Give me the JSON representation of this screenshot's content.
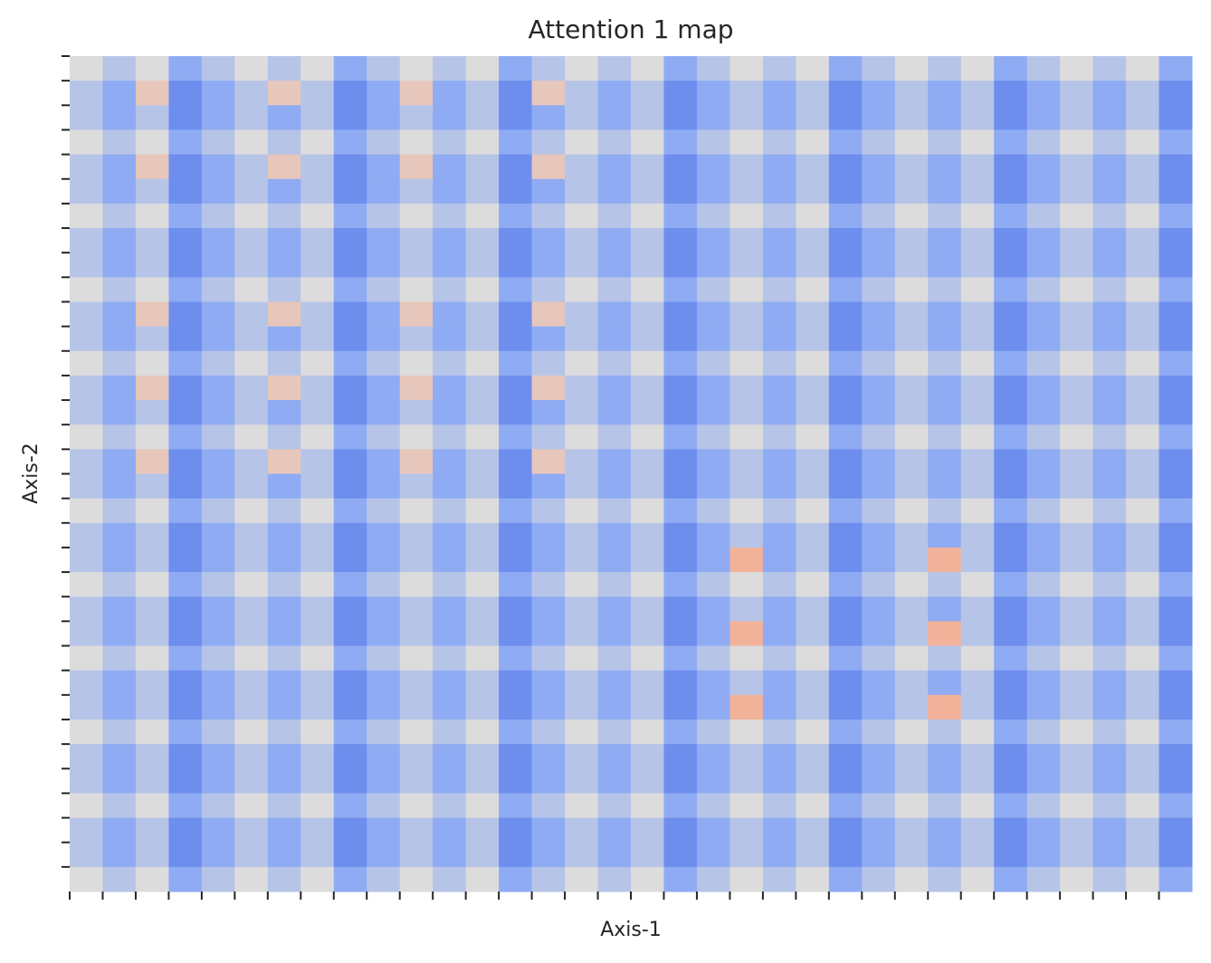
{
  "chart_data": {
    "type": "heatmap",
    "title": "Attention 1 map",
    "x_label": "Axis-1",
    "y_label": "Axis-2",
    "colormap": "coolwarm",
    "clim": [
      0,
      1
    ],
    "x_categories": [
      null,
      null,
      null,
      null,
      null,
      null,
      null,
      null,
      null,
      null,
      null,
      null,
      null,
      null,
      null,
      null,
      null,
      null,
      null,
      null,
      null,
      null,
      null,
      null,
      null,
      null,
      null,
      null,
      null,
      null,
      null,
      null,
      null,
      null
    ],
    "y_categories": [
      null,
      null,
      null,
      null,
      null,
      null,
      null,
      null,
      null,
      null,
      null,
      null,
      null,
      null,
      null,
      null,
      null,
      null,
      null,
      null,
      null,
      null,
      null,
      null,
      null,
      null,
      null,
      null,
      null,
      null,
      null,
      null,
      null,
      null
    ],
    "values": [
      [
        0.5,
        0.4,
        0.5,
        0.3,
        0.4,
        0.5,
        0.4,
        0.5,
        0.3,
        0.4,
        0.5,
        0.4,
        0.5,
        0.3,
        0.4,
        0.5,
        0.4,
        0.5,
        0.3,
        0.4,
        0.5,
        0.4,
        0.5,
        0.3,
        0.4,
        0.5,
        0.4,
        0.5,
        0.3,
        0.4,
        0.5,
        0.4,
        0.5,
        0.3
      ],
      [
        0.4,
        0.3,
        0.6,
        0.2,
        0.3,
        0.4,
        0.6,
        0.4,
        0.2,
        0.3,
        0.6,
        0.3,
        0.4,
        0.2,
        0.6,
        0.4,
        0.3,
        0.4,
        0.2,
        0.3,
        0.4,
        0.3,
        0.4,
        0.2,
        0.3,
        0.4,
        0.3,
        0.4,
        0.2,
        0.3,
        0.4,
        0.3,
        0.4,
        0.2
      ],
      [
        0.4,
        0.3,
        0.4,
        0.2,
        0.3,
        0.4,
        0.3,
        0.4,
        0.2,
        0.3,
        0.4,
        0.3,
        0.4,
        0.2,
        0.3,
        0.4,
        0.3,
        0.4,
        0.2,
        0.3,
        0.4,
        0.3,
        0.4,
        0.2,
        0.3,
        0.4,
        0.3,
        0.4,
        0.2,
        0.3,
        0.4,
        0.3,
        0.4,
        0.2
      ],
      [
        0.5,
        0.4,
        0.5,
        0.3,
        0.4,
        0.5,
        0.4,
        0.5,
        0.3,
        0.4,
        0.5,
        0.4,
        0.5,
        0.3,
        0.4,
        0.5,
        0.4,
        0.5,
        0.3,
        0.4,
        0.5,
        0.4,
        0.5,
        0.3,
        0.4,
        0.5,
        0.4,
        0.5,
        0.3,
        0.4,
        0.5,
        0.4,
        0.5,
        0.3
      ],
      [
        0.4,
        0.3,
        0.6,
        0.2,
        0.3,
        0.4,
        0.6,
        0.4,
        0.2,
        0.3,
        0.6,
        0.3,
        0.4,
        0.2,
        0.6,
        0.4,
        0.3,
        0.4,
        0.2,
        0.3,
        0.4,
        0.3,
        0.4,
        0.2,
        0.3,
        0.4,
        0.3,
        0.4,
        0.2,
        0.3,
        0.4,
        0.3,
        0.4,
        0.2
      ],
      [
        0.4,
        0.3,
        0.4,
        0.2,
        0.3,
        0.4,
        0.3,
        0.4,
        0.2,
        0.3,
        0.4,
        0.3,
        0.4,
        0.2,
        0.3,
        0.4,
        0.3,
        0.4,
        0.2,
        0.3,
        0.4,
        0.3,
        0.4,
        0.2,
        0.3,
        0.4,
        0.3,
        0.4,
        0.2,
        0.3,
        0.4,
        0.3,
        0.4,
        0.2
      ],
      [
        0.5,
        0.4,
        0.5,
        0.3,
        0.4,
        0.5,
        0.4,
        0.5,
        0.3,
        0.4,
        0.5,
        0.4,
        0.5,
        0.3,
        0.4,
        0.5,
        0.4,
        0.5,
        0.3,
        0.4,
        0.5,
        0.4,
        0.5,
        0.3,
        0.4,
        0.5,
        0.4,
        0.5,
        0.3,
        0.4,
        0.5,
        0.4,
        0.5,
        0.3
      ],
      [
        0.4,
        0.3,
        0.4,
        0.2,
        0.3,
        0.4,
        0.3,
        0.4,
        0.2,
        0.3,
        0.4,
        0.3,
        0.4,
        0.2,
        0.3,
        0.4,
        0.3,
        0.4,
        0.2,
        0.3,
        0.4,
        0.3,
        0.4,
        0.2,
        0.3,
        0.4,
        0.3,
        0.4,
        0.2,
        0.3,
        0.4,
        0.3,
        0.4,
        0.2
      ],
      [
        0.4,
        0.3,
        0.4,
        0.2,
        0.3,
        0.4,
        0.3,
        0.4,
        0.2,
        0.3,
        0.4,
        0.3,
        0.4,
        0.2,
        0.3,
        0.4,
        0.3,
        0.4,
        0.2,
        0.3,
        0.4,
        0.3,
        0.4,
        0.2,
        0.3,
        0.4,
        0.3,
        0.4,
        0.2,
        0.3,
        0.4,
        0.3,
        0.4,
        0.2
      ],
      [
        0.5,
        0.4,
        0.5,
        0.3,
        0.4,
        0.5,
        0.4,
        0.5,
        0.3,
        0.4,
        0.5,
        0.4,
        0.5,
        0.3,
        0.4,
        0.5,
        0.4,
        0.5,
        0.3,
        0.4,
        0.5,
        0.4,
        0.5,
        0.3,
        0.4,
        0.5,
        0.4,
        0.5,
        0.3,
        0.4,
        0.5,
        0.4,
        0.5,
        0.3
      ],
      [
        0.4,
        0.3,
        0.6,
        0.2,
        0.3,
        0.4,
        0.6,
        0.4,
        0.2,
        0.3,
        0.6,
        0.3,
        0.4,
        0.2,
        0.6,
        0.4,
        0.3,
        0.4,
        0.2,
        0.3,
        0.4,
        0.3,
        0.4,
        0.2,
        0.3,
        0.4,
        0.3,
        0.4,
        0.2,
        0.3,
        0.4,
        0.3,
        0.4,
        0.2
      ],
      [
        0.4,
        0.3,
        0.4,
        0.2,
        0.3,
        0.4,
        0.3,
        0.4,
        0.2,
        0.3,
        0.4,
        0.3,
        0.4,
        0.2,
        0.3,
        0.4,
        0.3,
        0.4,
        0.2,
        0.3,
        0.4,
        0.3,
        0.4,
        0.2,
        0.3,
        0.4,
        0.3,
        0.4,
        0.2,
        0.3,
        0.4,
        0.3,
        0.4,
        0.2
      ],
      [
        0.5,
        0.4,
        0.5,
        0.3,
        0.4,
        0.5,
        0.4,
        0.5,
        0.3,
        0.4,
        0.5,
        0.4,
        0.5,
        0.3,
        0.4,
        0.5,
        0.4,
        0.5,
        0.3,
        0.4,
        0.5,
        0.4,
        0.5,
        0.3,
        0.4,
        0.5,
        0.4,
        0.5,
        0.3,
        0.4,
        0.5,
        0.4,
        0.5,
        0.3
      ],
      [
        0.4,
        0.3,
        0.6,
        0.2,
        0.3,
        0.4,
        0.6,
        0.4,
        0.2,
        0.3,
        0.6,
        0.3,
        0.4,
        0.2,
        0.6,
        0.4,
        0.3,
        0.4,
        0.2,
        0.3,
        0.4,
        0.3,
        0.4,
        0.2,
        0.3,
        0.4,
        0.3,
        0.4,
        0.2,
        0.3,
        0.4,
        0.3,
        0.4,
        0.2
      ],
      [
        0.4,
        0.3,
        0.4,
        0.2,
        0.3,
        0.4,
        0.3,
        0.4,
        0.2,
        0.3,
        0.4,
        0.3,
        0.4,
        0.2,
        0.3,
        0.4,
        0.3,
        0.4,
        0.2,
        0.3,
        0.4,
        0.3,
        0.4,
        0.2,
        0.3,
        0.4,
        0.3,
        0.4,
        0.2,
        0.3,
        0.4,
        0.3,
        0.4,
        0.2
      ],
      [
        0.5,
        0.4,
        0.5,
        0.3,
        0.4,
        0.5,
        0.4,
        0.5,
        0.3,
        0.4,
        0.5,
        0.4,
        0.5,
        0.3,
        0.4,
        0.5,
        0.4,
        0.5,
        0.3,
        0.4,
        0.5,
        0.4,
        0.5,
        0.3,
        0.4,
        0.5,
        0.4,
        0.5,
        0.3,
        0.4,
        0.5,
        0.4,
        0.5,
        0.3
      ],
      [
        0.4,
        0.3,
        0.6,
        0.2,
        0.3,
        0.4,
        0.6,
        0.4,
        0.2,
        0.3,
        0.6,
        0.3,
        0.4,
        0.2,
        0.6,
        0.4,
        0.3,
        0.4,
        0.2,
        0.3,
        0.4,
        0.3,
        0.4,
        0.2,
        0.3,
        0.4,
        0.3,
        0.4,
        0.2,
        0.3,
        0.4,
        0.3,
        0.4,
        0.2
      ],
      [
        0.4,
        0.3,
        0.4,
        0.2,
        0.3,
        0.4,
        0.3,
        0.4,
        0.2,
        0.3,
        0.4,
        0.3,
        0.4,
        0.2,
        0.3,
        0.4,
        0.3,
        0.4,
        0.2,
        0.3,
        0.4,
        0.3,
        0.4,
        0.2,
        0.3,
        0.4,
        0.3,
        0.4,
        0.2,
        0.3,
        0.4,
        0.3,
        0.4,
        0.2
      ],
      [
        0.5,
        0.4,
        0.5,
        0.3,
        0.4,
        0.5,
        0.4,
        0.5,
        0.3,
        0.4,
        0.5,
        0.4,
        0.5,
        0.3,
        0.4,
        0.5,
        0.4,
        0.5,
        0.3,
        0.4,
        0.5,
        0.4,
        0.5,
        0.3,
        0.4,
        0.5,
        0.4,
        0.5,
        0.3,
        0.4,
        0.5,
        0.4,
        0.5,
        0.3
      ],
      [
        0.4,
        0.3,
        0.4,
        0.2,
        0.3,
        0.4,
        0.3,
        0.4,
        0.2,
        0.3,
        0.4,
        0.3,
        0.4,
        0.2,
        0.3,
        0.4,
        0.3,
        0.4,
        0.2,
        0.3,
        0.4,
        0.3,
        0.4,
        0.2,
        0.3,
        0.4,
        0.3,
        0.4,
        0.2,
        0.3,
        0.4,
        0.3,
        0.4,
        0.2
      ],
      [
        0.4,
        0.3,
        0.4,
        0.2,
        0.3,
        0.4,
        0.3,
        0.4,
        0.2,
        0.3,
        0.4,
        0.3,
        0.4,
        0.2,
        0.3,
        0.4,
        0.3,
        0.4,
        0.2,
        0.3,
        0.7,
        0.3,
        0.4,
        0.2,
        0.3,
        0.4,
        0.7,
        0.4,
        0.2,
        0.3,
        0.4,
        0.3,
        0.4,
        0.2
      ],
      [
        0.5,
        0.4,
        0.5,
        0.3,
        0.4,
        0.5,
        0.4,
        0.5,
        0.3,
        0.4,
        0.5,
        0.4,
        0.5,
        0.3,
        0.4,
        0.5,
        0.4,
        0.5,
        0.3,
        0.4,
        0.5,
        0.4,
        0.5,
        0.3,
        0.4,
        0.5,
        0.4,
        0.5,
        0.3,
        0.4,
        0.5,
        0.4,
        0.5,
        0.3
      ],
      [
        0.4,
        0.3,
        0.4,
        0.2,
        0.3,
        0.4,
        0.3,
        0.4,
        0.2,
        0.3,
        0.4,
        0.3,
        0.4,
        0.2,
        0.3,
        0.4,
        0.3,
        0.4,
        0.2,
        0.3,
        0.4,
        0.3,
        0.4,
        0.2,
        0.3,
        0.4,
        0.3,
        0.4,
        0.2,
        0.3,
        0.4,
        0.3,
        0.4,
        0.2
      ],
      [
        0.4,
        0.3,
        0.4,
        0.2,
        0.3,
        0.4,
        0.3,
        0.4,
        0.2,
        0.3,
        0.4,
        0.3,
        0.4,
        0.2,
        0.3,
        0.4,
        0.3,
        0.4,
        0.2,
        0.3,
        0.7,
        0.3,
        0.4,
        0.2,
        0.3,
        0.4,
        0.7,
        0.4,
        0.2,
        0.3,
        0.4,
        0.3,
        0.4,
        0.2
      ],
      [
        0.5,
        0.4,
        0.5,
        0.3,
        0.4,
        0.5,
        0.4,
        0.5,
        0.3,
        0.4,
        0.5,
        0.4,
        0.5,
        0.3,
        0.4,
        0.5,
        0.4,
        0.5,
        0.3,
        0.4,
        0.5,
        0.4,
        0.5,
        0.3,
        0.4,
        0.5,
        0.4,
        0.5,
        0.3,
        0.4,
        0.5,
        0.4,
        0.5,
        0.3
      ],
      [
        0.4,
        0.3,
        0.4,
        0.2,
        0.3,
        0.4,
        0.3,
        0.4,
        0.2,
        0.3,
        0.4,
        0.3,
        0.4,
        0.2,
        0.3,
        0.4,
        0.3,
        0.4,
        0.2,
        0.3,
        0.4,
        0.3,
        0.4,
        0.2,
        0.3,
        0.4,
        0.3,
        0.4,
        0.2,
        0.3,
        0.4,
        0.3,
        0.4,
        0.2
      ],
      [
        0.4,
        0.3,
        0.4,
        0.2,
        0.3,
        0.4,
        0.3,
        0.4,
        0.2,
        0.3,
        0.4,
        0.3,
        0.4,
        0.2,
        0.3,
        0.4,
        0.3,
        0.4,
        0.2,
        0.3,
        0.7,
        0.3,
        0.4,
        0.2,
        0.3,
        0.4,
        0.7,
        0.4,
        0.2,
        0.3,
        0.4,
        0.3,
        0.4,
        0.2
      ],
      [
        0.5,
        0.4,
        0.5,
        0.3,
        0.4,
        0.5,
        0.4,
        0.5,
        0.3,
        0.4,
        0.5,
        0.4,
        0.5,
        0.3,
        0.4,
        0.5,
        0.4,
        0.5,
        0.3,
        0.4,
        0.5,
        0.4,
        0.5,
        0.3,
        0.4,
        0.5,
        0.4,
        0.5,
        0.3,
        0.4,
        0.5,
        0.4,
        0.5,
        0.3
      ],
      [
        0.4,
        0.3,
        0.4,
        0.2,
        0.3,
        0.4,
        0.3,
        0.4,
        0.2,
        0.3,
        0.4,
        0.3,
        0.4,
        0.2,
        0.3,
        0.4,
        0.3,
        0.4,
        0.2,
        0.3,
        0.4,
        0.3,
        0.4,
        0.2,
        0.3,
        0.4,
        0.3,
        0.4,
        0.2,
        0.3,
        0.4,
        0.3,
        0.4,
        0.2
      ],
      [
        0.4,
        0.3,
        0.4,
        0.2,
        0.3,
        0.4,
        0.3,
        0.4,
        0.2,
        0.3,
        0.4,
        0.3,
        0.4,
        0.2,
        0.3,
        0.4,
        0.3,
        0.4,
        0.2,
        0.3,
        0.4,
        0.3,
        0.4,
        0.2,
        0.3,
        0.4,
        0.3,
        0.4,
        0.2,
        0.3,
        0.4,
        0.3,
        0.4,
        0.2
      ],
      [
        0.5,
        0.4,
        0.5,
        0.3,
        0.4,
        0.5,
        0.4,
        0.5,
        0.3,
        0.4,
        0.5,
        0.4,
        0.5,
        0.3,
        0.4,
        0.5,
        0.4,
        0.5,
        0.3,
        0.4,
        0.5,
        0.4,
        0.5,
        0.3,
        0.4,
        0.5,
        0.4,
        0.5,
        0.3,
        0.4,
        0.5,
        0.4,
        0.5,
        0.3
      ],
      [
        0.4,
        0.3,
        0.4,
        0.2,
        0.3,
        0.4,
        0.3,
        0.4,
        0.2,
        0.3,
        0.4,
        0.3,
        0.4,
        0.2,
        0.3,
        0.4,
        0.3,
        0.4,
        0.2,
        0.3,
        0.4,
        0.3,
        0.4,
        0.2,
        0.3,
        0.4,
        0.3,
        0.4,
        0.2,
        0.3,
        0.4,
        0.3,
        0.4,
        0.2
      ],
      [
        0.4,
        0.3,
        0.4,
        0.2,
        0.3,
        0.4,
        0.3,
        0.4,
        0.2,
        0.3,
        0.4,
        0.3,
        0.4,
        0.2,
        0.3,
        0.4,
        0.3,
        0.4,
        0.2,
        0.3,
        0.4,
        0.3,
        0.4,
        0.2,
        0.3,
        0.4,
        0.3,
        0.4,
        0.2,
        0.3,
        0.4,
        0.3,
        0.4,
        0.2
      ],
      [
        0.5,
        0.4,
        0.5,
        0.3,
        0.4,
        0.5,
        0.4,
        0.5,
        0.3,
        0.4,
        0.5,
        0.4,
        0.5,
        0.3,
        0.4,
        0.5,
        0.4,
        0.5,
        0.3,
        0.4,
        0.5,
        0.4,
        0.5,
        0.3,
        0.4,
        0.5,
        0.4,
        0.5,
        0.3,
        0.4,
        0.5,
        0.4,
        0.5,
        0.3
      ]
    ]
  }
}
